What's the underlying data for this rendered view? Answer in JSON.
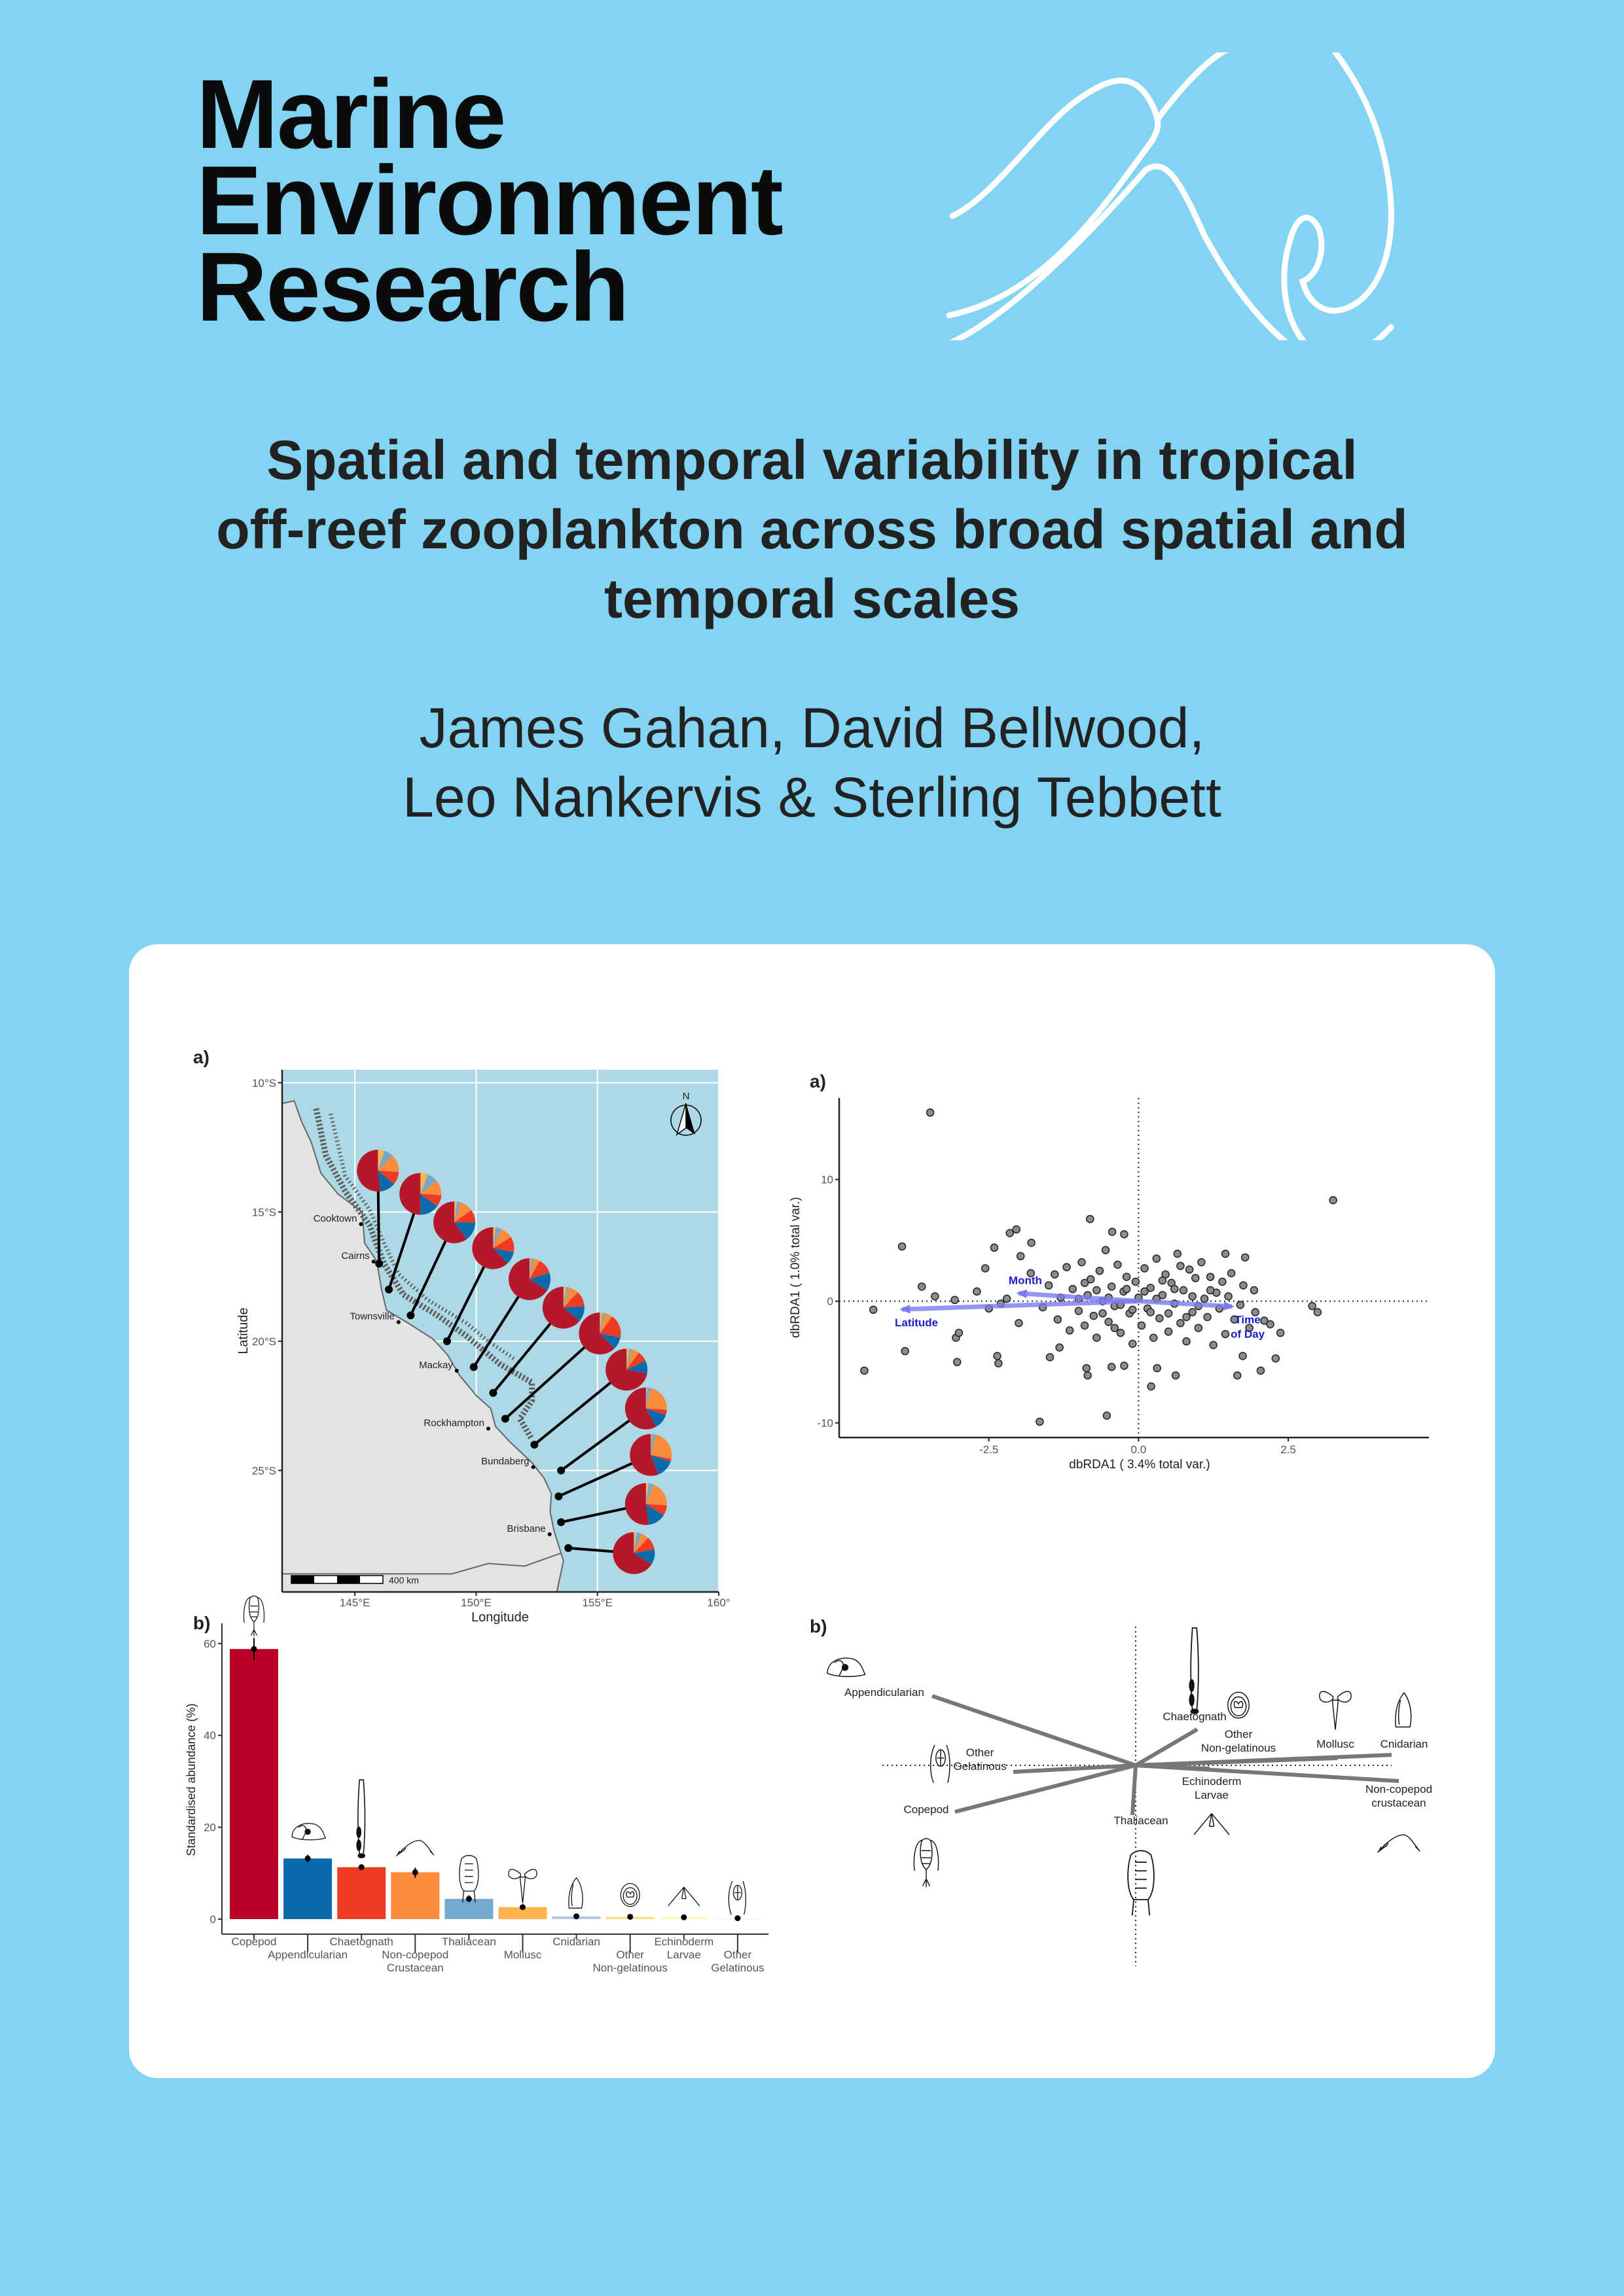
{
  "journal": {
    "lines": [
      "Marine",
      "Environment",
      "Research"
    ]
  },
  "paper": {
    "title_lines": [
      "Spatial and temporal variability in tropical",
      "off-reef zooplankton across broad spatial and",
      "temporal scales"
    ],
    "author_lines": [
      "James Gahan, David Bellwood,",
      "Leo Nankervis & Sterling Tebbett"
    ]
  },
  "colors": {
    "background": "#83d3f3",
    "card": "#ffffff",
    "sea": "#add8e6",
    "land": "#e3e3e3",
    "reef": "#5f5f5f",
    "arrow": "#7b7bf0",
    "arrow_label": "#1a1acc"
  },
  "chart_data": [
    {
      "type": "map",
      "panel_label": "a)",
      "xlabel": "Longitude",
      "ylabel": "Latitude",
      "xlim": [
        142,
        160
      ],
      "ylim": [
        -29.7,
        -9.5
      ],
      "x_ticks": [
        {
          "value": 145,
          "label": "145°E"
        },
        {
          "value": 150,
          "label": "150°E"
        },
        {
          "value": 155,
          "label": "155°E"
        },
        {
          "value": 160,
          "label": "160°"
        }
      ],
      "y_ticks": [
        {
          "value": -10,
          "label": "10°S"
        },
        {
          "value": -15,
          "label": "15°S"
        },
        {
          "value": -20,
          "label": "20°S"
        },
        {
          "value": -25,
          "label": "25°S"
        }
      ],
      "grid": true,
      "north_label": "N",
      "scale_bar_label": "400 km",
      "cities": [
        {
          "name": "Cooktown",
          "lon": 145.25,
          "lat": -15.47
        },
        {
          "name": "Cairns",
          "lon": 145.77,
          "lat": -16.92
        },
        {
          "name": "Townsville",
          "lon": 146.8,
          "lat": -19.26
        },
        {
          "name": "Mackay",
          "lon": 149.2,
          "lat": -21.14
        },
        {
          "name": "Rockhampton",
          "lon": 150.5,
          "lat": -23.38
        },
        {
          "name": "Bundaberg",
          "lon": 152.35,
          "lat": -24.87
        },
        {
          "name": "Brisbane",
          "lon": 153.03,
          "lat": -27.47
        }
      ],
      "pie_slice_order": [
        "Other Non-gelatinous",
        "Thaliacean",
        "Non-copepod Crustacean",
        "Chaetognath",
        "Appendicularian",
        "Copepod"
      ],
      "pie_slice_colors": [
        "#fcb44c",
        "#74a9cf",
        "#fb8c3c",
        "#ee3b23",
        "#0a6aab",
        "#b5182a"
      ],
      "sites": [
        {
          "lon": 146.0,
          "lat": -17.0,
          "composition": [
            0.05,
            0.07,
            0.14,
            0.1,
            0.12,
            0.52
          ]
        },
        {
          "lon": 146.4,
          "lat": -18.0,
          "composition": [
            0.06,
            0.08,
            0.12,
            0.09,
            0.15,
            0.5
          ]
        },
        {
          "lon": 147.3,
          "lat": -19.0,
          "composition": [
            0.02,
            0.03,
            0.1,
            0.1,
            0.15,
            0.6
          ]
        },
        {
          "lon": 148.8,
          "lat": -20.0,
          "composition": [
            0.02,
            0.04,
            0.1,
            0.12,
            0.1,
            0.62
          ]
        },
        {
          "lon": 149.9,
          "lat": -21.0,
          "composition": [
            0.01,
            0.02,
            0.05,
            0.12,
            0.14,
            0.66
          ]
        },
        {
          "lon": 150.7,
          "lat": -22.0,
          "composition": [
            0.02,
            0.02,
            0.08,
            0.12,
            0.12,
            0.64
          ]
        },
        {
          "lon": 151.2,
          "lat": -23.0,
          "composition": [
            0.02,
            0.02,
            0.06,
            0.18,
            0.1,
            0.62
          ]
        },
        {
          "lon": 152.4,
          "lat": -24.0,
          "composition": [
            0.02,
            0.02,
            0.06,
            0.08,
            0.1,
            0.72
          ]
        },
        {
          "lon": 153.5,
          "lat": -25.0,
          "composition": [
            0.01,
            0.03,
            0.22,
            0.04,
            0.12,
            0.58
          ]
        },
        {
          "lon": 153.4,
          "lat": -26.0,
          "composition": [
            0.01,
            0.03,
            0.24,
            0.02,
            0.14,
            0.56
          ]
        },
        {
          "lon": 153.5,
          "lat": -27.0,
          "composition": [
            0.02,
            0.04,
            0.2,
            0.08,
            0.14,
            0.52
          ]
        },
        {
          "lon": 153.8,
          "lat": -28.0,
          "composition": [
            0.02,
            0.04,
            0.06,
            0.1,
            0.12,
            0.66
          ]
        }
      ]
    },
    {
      "type": "bar",
      "panel_label": "b)",
      "ylabel": "Standardised abundance (%)",
      "ylim": [
        0,
        65
      ],
      "y_ticks": [
        0,
        20,
        40,
        60
      ],
      "categories": [
        [
          "Copepod"
        ],
        [
          "Appendicularian"
        ],
        [
          "Chaetognath"
        ],
        [
          "Non-copepod",
          "Crustacean"
        ],
        [
          "Thaliacean"
        ],
        [
          "Mollusc"
        ],
        [
          "Cnidarian"
        ],
        [
          "Other",
          "Non-gelatinous"
        ],
        [
          "Echinoderm",
          "Larvae"
        ],
        [
          "Other",
          "Gelatinous"
        ]
      ],
      "values": [
        58.8,
        13.2,
        11.3,
        10.2,
        4.4,
        2.6,
        0.6,
        0.5,
        0.4,
        0.2
      ],
      "error_low": [
        56.4,
        12.4,
        10.8,
        9.0,
        3.7,
        2.2,
        0.4,
        0.3,
        0.2,
        0.1
      ],
      "error_high": [
        61.2,
        14.0,
        11.8,
        11.2,
        5.2,
        3.0,
        0.8,
        0.7,
        0.6,
        0.3
      ],
      "colors": [
        "#b8002a",
        "#0a6aab",
        "#ee3b23",
        "#fb8c3c",
        "#74a9cf",
        "#fcb44c",
        "#b7c9e2",
        "#fbe08a",
        "#fdf5b0",
        "#eeeeee"
      ],
      "icons": [
        "copepod-icon",
        "appendicularian-icon",
        "chaetognath-icon",
        "crustacean-icon",
        "thaliacean-icon",
        "mollusc-icon",
        "cnidarian-icon",
        "non-gelatinous-icon",
        "echinoderm-larva-icon",
        "gelatinous-icon"
      ]
    },
    {
      "type": "scatter",
      "panel_label": "a)",
      "xlabel": "dbRDA1 ( 3.4% total var.)",
      "ylabel": "dbRDA1 ( 1.0% total var.)",
      "xlim": [
        -5.0,
        4.85
      ],
      "ylim": [
        -11.2,
        16.7
      ],
      "x_ticks": [
        {
          "value": -2.5,
          "label": "-2.5"
        },
        {
          "value": 0,
          "label": "0.0"
        },
        {
          "value": 2.5,
          "label": "2.5"
        }
      ],
      "y_ticks": [
        {
          "value": -10,
          "label": "-10"
        },
        {
          "value": 0,
          "label": "0"
        },
        {
          "value": 10,
          "label": "10"
        }
      ],
      "reference_lines": {
        "x": 0,
        "y": 0,
        "style": "dotted"
      },
      "vectors": [
        {
          "label": "Latitude",
          "x": -3.95,
          "y": -0.67
        },
        {
          "label": "Month",
          "x": -2.0,
          "y": 0.65
        },
        {
          "label_lines": [
            "Time",
            "of Day"
          ],
          "x": 1.56,
          "y": -0.43
        }
      ],
      "points": [
        [
          -3.48,
          15.5
        ],
        [
          3.25,
          8.3
        ],
        [
          -3.95,
          4.5
        ],
        [
          -4.58,
          -5.7
        ],
        [
          -4.43,
          -0.7
        ],
        [
          -3.9,
          -4.1
        ],
        [
          -3.62,
          1.2
        ],
        [
          -3.4,
          0.4
        ],
        [
          -3.07,
          0.1
        ],
        [
          -3.05,
          -3.0
        ],
        [
          -3.0,
          -2.6
        ],
        [
          -3.03,
          -5.0
        ],
        [
          -2.36,
          -4.5
        ],
        [
          -2.34,
          -5.1
        ],
        [
          -1.65,
          -9.9
        ],
        [
          -0.53,
          -9.4
        ],
        [
          -0.81,
          6.75
        ],
        [
          0.21,
          -7.0
        ],
        [
          2.9,
          -0.4
        ],
        [
          2.99,
          -0.9
        ],
        [
          2.37,
          -2.6
        ],
        [
          2.29,
          -4.7
        ],
        [
          2.04,
          -5.7
        ],
        [
          1.65,
          -6.1
        ],
        [
          0.62,
          -6.1
        ],
        [
          -2.56,
          2.7
        ],
        [
          -2.41,
          4.4
        ],
        [
          -2.15,
          5.6
        ],
        [
          -2.04,
          5.9
        ],
        [
          -1.79,
          4.8
        ],
        [
          -1.97,
          3.7
        ],
        [
          -0.87,
          -5.5
        ],
        [
          -0.85,
          -6.1
        ],
        [
          -0.45,
          -5.4
        ],
        [
          -0.24,
          -5.3
        ],
        [
          0.31,
          -5.5
        ],
        [
          -0.44,
          5.7
        ],
        [
          -0.24,
          5.5
        ],
        [
          -1.48,
          -4.6
        ],
        [
          -1.32,
          -3.8
        ],
        [
          1.74,
          -4.5
        ],
        [
          1.93,
          0.9
        ],
        [
          1.78,
          3.6
        ],
        [
          1.45,
          3.9
        ],
        [
          -2.7,
          0.8
        ],
        [
          -2.5,
          -0.6
        ],
        [
          -2.3,
          -0.2
        ],
        [
          -2.2,
          0.2
        ],
        [
          -2.0,
          -1.8
        ],
        [
          -1.8,
          2.3
        ],
        [
          -1.6,
          -0.5
        ],
        [
          -1.5,
          1.3
        ],
        [
          -1.4,
          2.2
        ],
        [
          -1.35,
          -1.5
        ],
        [
          -1.3,
          0.3
        ],
        [
          -1.2,
          2.8
        ],
        [
          -1.15,
          -2.4
        ],
        [
          -1.1,
          1.0
        ],
        [
          -1.0,
          -0.8
        ],
        [
          -0.95,
          3.2
        ],
        [
          -0.9,
          -2.0
        ],
        [
          -0.85,
          0.5
        ],
        [
          -0.8,
          1.8
        ],
        [
          -0.75,
          -1.2
        ],
        [
          -0.7,
          -3.0
        ],
        [
          -0.65,
          2.5
        ],
        [
          -0.6,
          0.0
        ],
        [
          -0.55,
          4.2
        ],
        [
          -0.5,
          -1.7
        ],
        [
          -0.45,
          1.2
        ],
        [
          -0.4,
          -0.4
        ],
        [
          -0.35,
          3.0
        ],
        [
          -0.3,
          -2.6
        ],
        [
          -0.25,
          0.8
        ],
        [
          -0.2,
          2.0
        ],
        [
          -0.15,
          -1.0
        ],
        [
          -0.1,
          -3.5
        ],
        [
          -0.05,
          1.6
        ],
        [
          0.0,
          0.3
        ],
        [
          0.05,
          -2.0
        ],
        [
          0.1,
          2.7
        ],
        [
          0.15,
          -0.6
        ],
        [
          0.2,
          1.1
        ],
        [
          0.25,
          -3.0
        ],
        [
          0.3,
          3.5
        ],
        [
          0.35,
          -1.4
        ],
        [
          0.4,
          0.5
        ],
        [
          0.45,
          2.2
        ],
        [
          0.5,
          -2.5
        ],
        [
          0.55,
          1.5
        ],
        [
          0.6,
          -0.2
        ],
        [
          0.65,
          3.9
        ],
        [
          0.7,
          -1.8
        ],
        [
          0.75,
          0.9
        ],
        [
          0.8,
          -3.3
        ],
        [
          0.85,
          2.6
        ],
        [
          0.9,
          -0.9
        ],
        [
          0.95,
          1.9
        ],
        [
          1.0,
          -2.2
        ],
        [
          1.05,
          3.2
        ],
        [
          1.1,
          0.2
        ],
        [
          1.15,
          -1.3
        ],
        [
          1.2,
          2.0
        ],
        [
          1.25,
          -3.6
        ],
        [
          1.3,
          0.7
        ],
        [
          1.35,
          -0.6
        ],
        [
          1.4,
          1.6
        ],
        [
          1.45,
          -2.7
        ],
        [
          1.5,
          0.4
        ],
        [
          1.55,
          2.3
        ],
        [
          1.6,
          -1.5
        ],
        [
          1.7,
          -0.3
        ],
        [
          1.75,
          1.3
        ],
        [
          1.85,
          -2.2
        ],
        [
          1.95,
          -0.9
        ],
        [
          2.1,
          -1.6
        ],
        [
          2.2,
          -1.9
        ],
        [
          -0.7,
          0.9
        ],
        [
          -0.3,
          -0.3
        ],
        [
          0.3,
          0.2
        ],
        [
          0.6,
          1.0
        ],
        [
          -0.1,
          -0.7
        ],
        [
          0.9,
          0.4
        ],
        [
          -0.5,
          0.3
        ],
        [
          0.2,
          -0.9
        ],
        [
          1.0,
          -0.4
        ],
        [
          -0.2,
          1.0
        ],
        [
          0.5,
          -1.0
        ],
        [
          -1.0,
          0.2
        ],
        [
          0.8,
          -1.3
        ],
        [
          -0.6,
          -1.0
        ],
        [
          0.1,
          0.8
        ],
        [
          1.2,
          0.9
        ],
        [
          -0.9,
          1.5
        ],
        [
          0.4,
          1.7
        ],
        [
          -0.4,
          -2.2
        ],
        [
          0.7,
          2.9
        ]
      ]
    },
    {
      "type": "biplot",
      "panel_label": "b)",
      "reference_lines": {
        "x": 0,
        "y": 0,
        "style": "dotted"
      },
      "vectors": [
        {
          "label_lines": [
            "Appendicularian"
          ],
          "icon": "appendicularian-icon",
          "x": -3.11,
          "y": 1.06
        },
        {
          "label_lines": [
            "Chaetognath"
          ],
          "icon": "chaetognath-icon",
          "x": 0.94,
          "y": 0.55
        },
        {
          "label_lines": [
            "Other",
            "Non-gelatinous"
          ],
          "icon": "non-gelatinous-icon",
          "x": 2.7,
          "y": 0.1
        },
        {
          "label_lines": [
            "Mollusc"
          ],
          "icon": "mollusc-icon",
          "x": 3.08,
          "y": 0.11
        },
        {
          "label_lines": [
            "Cnidarian"
          ],
          "icon": "cnidarian-icon",
          "x": 3.91,
          "y": 0.16
        },
        {
          "label_lines": [
            "Echinoderm",
            "Larvae"
          ],
          "icon": "echinoderm-larva-icon",
          "x": 1.13,
          "y": -0.05
        },
        {
          "label_lines": [
            "Non-copepod",
            "crustacean"
          ],
          "icon": "crustacean-icon",
          "x": 4.02,
          "y": -0.24
        },
        {
          "label_lines": [
            "Other",
            "Gelatinous"
          ],
          "icon": "gelatinous-icon",
          "x": -1.87,
          "y": -0.1
        },
        {
          "label_lines": [
            "Copepod"
          ],
          "icon": "copepod-icon",
          "x": -2.76,
          "y": -0.71
        },
        {
          "label_lines": [
            "Thaliacean"
          ],
          "icon": "thaliacean-icon",
          "x": -0.05,
          "y": -0.76
        }
      ]
    }
  ]
}
